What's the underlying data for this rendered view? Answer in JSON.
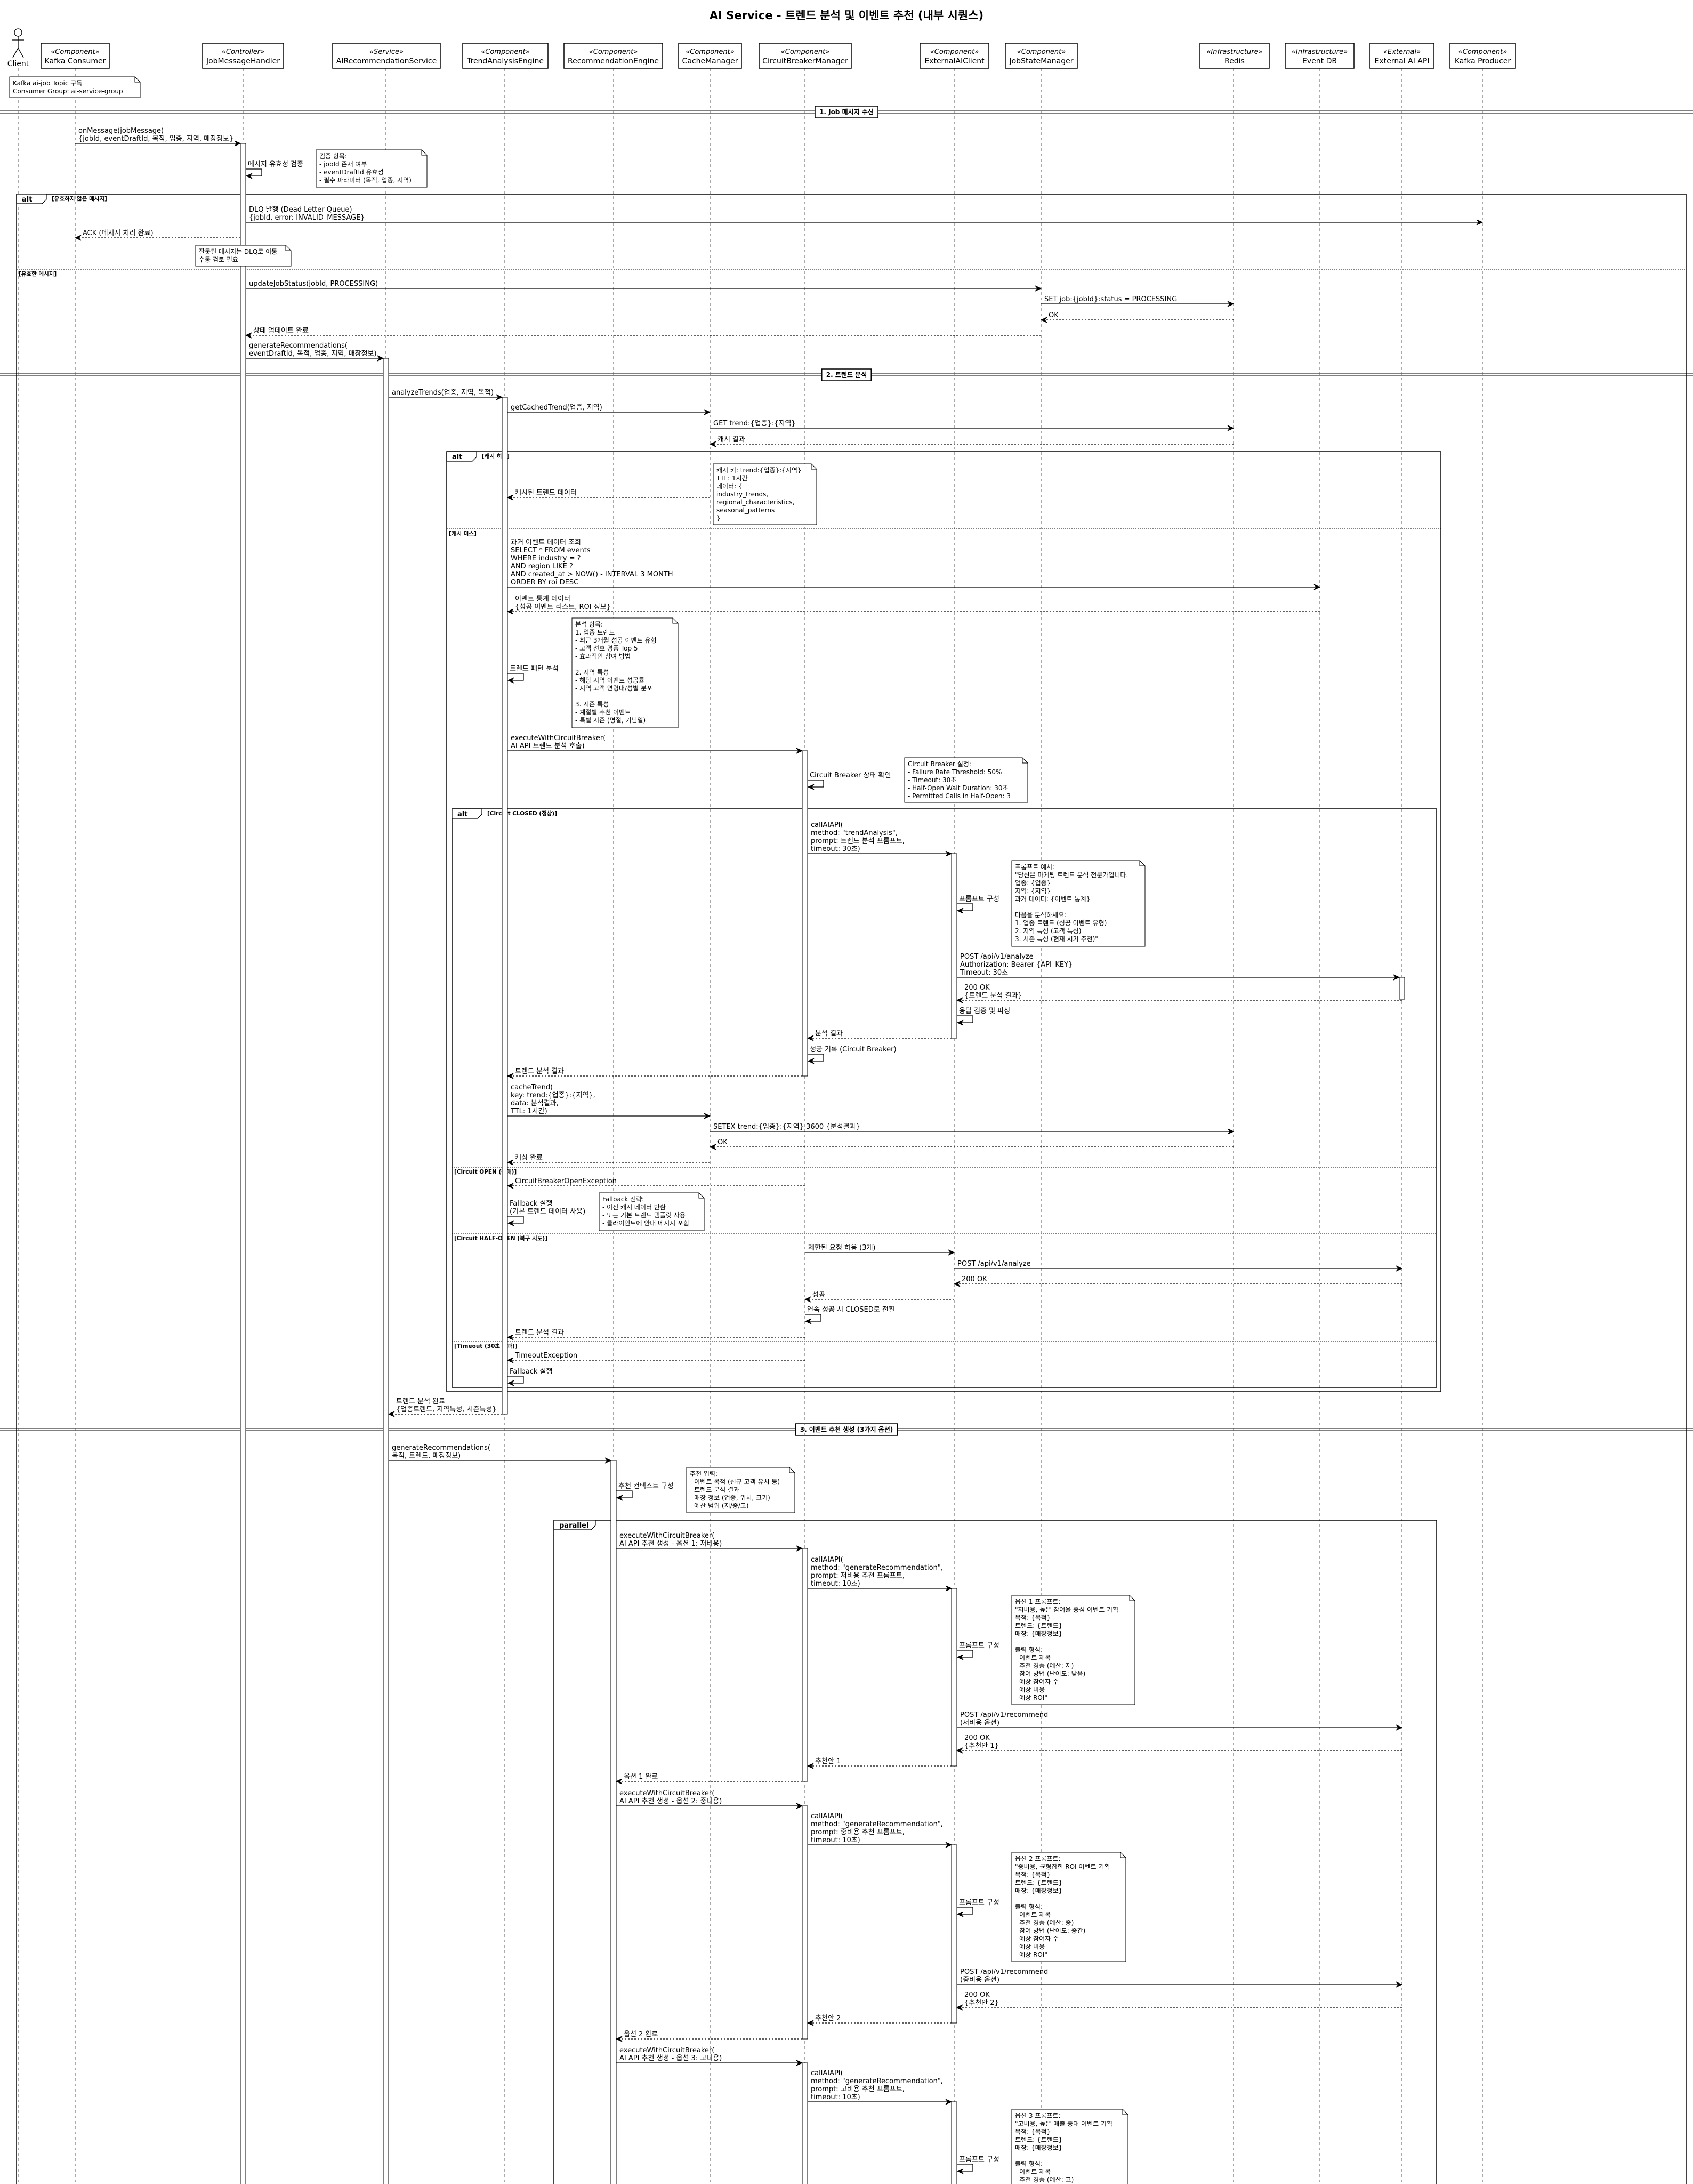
{
  "title": "AI Service - 트렌드 분석 및 이벤트 추천 (내부 시퀀스)",
  "participants": [
    {
      "stereotype": "",
      "name": "Client",
      "kind": "actor"
    },
    {
      "stereotype": "«Component»",
      "name": "Kafka Consumer"
    },
    {
      "stereotype": "«Controller»",
      "name": "JobMessageHandler"
    },
    {
      "stereotype": "«Service»",
      "name": "AIRecommendationService"
    },
    {
      "stereotype": "«Component»",
      "name": "TrendAnalysisEngine"
    },
    {
      "stereotype": "«Component»",
      "name": "RecommendationEngine"
    },
    {
      "stereotype": "«Component»",
      "name": "CacheManager"
    },
    {
      "stereotype": "«Component»",
      "name": "CircuitBreakerManager"
    },
    {
      "stereotype": "«Component»",
      "name": "ExternalAIClient"
    },
    {
      "stereotype": "«Component»",
      "name": "JobStateManager"
    },
    {
      "stereotype": "«Infrastructure»",
      "name": "Redis"
    },
    {
      "stereotype": "«Infrastructure»",
      "name": "Event DB"
    },
    {
      "stereotype": "«External»",
      "name": "External AI API"
    },
    {
      "stereotype": "«Component»",
      "name": "Kafka Producer"
    }
  ],
  "dividers": [
    "1. Job 메시지 수신",
    "2. 트렌드 분석",
    "3. 이벤트 추천 생성 (3가지 옵션)"
  ],
  "fragments": [
    {
      "type": "alt",
      "guards": [
        "[유효하지 않은 메시지]",
        "[유효한 메시지]"
      ]
    },
    {
      "type": "alt",
      "guards": [
        "[캐시 히트]",
        "[캐시 미스]"
      ]
    },
    {
      "type": "alt",
      "guards": [
        "[Circuit CLOSED (정상)]",
        "[Circuit OPEN (장애)]",
        "[Circuit HALF-OPEN (복구 시도)]",
        "[Timeout (30초 초과)]"
      ]
    },
    {
      "type": "parallel",
      "guards": []
    }
  ],
  "messages": [
    {
      "from": "Kafka Consumer",
      "to": "JobMessageHandler",
      "kind": "sync",
      "lines": [
        "onMessage(jobMessage)",
        "{jobId, eventDraftId, 목적, 업종, 지역, 매장정보}"
      ]
    },
    {
      "from": "JobMessageHandler",
      "to": "JobMessageHandler",
      "kind": "self",
      "lines": [
        "메시지 유효성 검증"
      ]
    },
    {
      "from": "JobMessageHandler",
      "to": "Kafka Producer",
      "kind": "sync",
      "lines": [
        "DLQ 발행 (Dead Letter Queue)",
        "{jobId, error: INVALID_MESSAGE}"
      ]
    },
    {
      "from": "JobMessageHandler",
      "to": "Kafka Consumer",
      "kind": "return",
      "lines": [
        "ACK (메시지 처리 완료)"
      ]
    },
    {
      "from": "JobMessageHandler",
      "to": "JobStateManager",
      "kind": "sync",
      "lines": [
        "updateJobStatus(jobId, PROCESSING)"
      ]
    },
    {
      "from": "JobStateManager",
      "to": "Redis",
      "kind": "sync",
      "lines": [
        "SET job:{jobId}:status = PROCESSING"
      ]
    },
    {
      "from": "Redis",
      "to": "JobStateManager",
      "kind": "return",
      "lines": [
        "OK"
      ]
    },
    {
      "from": "JobStateManager",
      "to": "JobMessageHandler",
      "kind": "return",
      "lines": [
        "상태 업데이트 완료"
      ]
    },
    {
      "from": "JobMessageHandler",
      "to": "AIRecommendationService",
      "kind": "sync",
      "lines": [
        "generateRecommendations(",
        "eventDraftId, 목적, 업종, 지역, 매장정보)"
      ]
    },
    {
      "from": "AIRecommendationService",
      "to": "TrendAnalysisEngine",
      "kind": "sync",
      "lines": [
        "analyzeTrends(업종, 지역, 목적)"
      ]
    },
    {
      "from": "TrendAnalysisEngine",
      "to": "CacheManager",
      "kind": "sync",
      "lines": [
        "getCachedTrend(업종, 지역)"
      ]
    },
    {
      "from": "CacheManager",
      "to": "Redis",
      "kind": "sync",
      "lines": [
        "GET trend:{업종}:{지역}"
      ]
    },
    {
      "from": "Redis",
      "to": "CacheManager",
      "kind": "return",
      "lines": [
        "캐시 결과"
      ]
    },
    {
      "from": "CacheManager",
      "to": "TrendAnalysisEngine",
      "kind": "return",
      "lines": [
        "캐시된 트렌드 데이터"
      ]
    },
    {
      "from": "TrendAnalysisEngine",
      "to": "Event DB",
      "kind": "sync",
      "lines": [
        "과거 이벤트 데이터 조회",
        "SELECT * FROM events",
        "WHERE industry = ?",
        "AND region LIKE ?",
        "AND created_at > NOW() - INTERVAL 3 MONTH",
        "ORDER BY roi DESC"
      ]
    },
    {
      "from": "Event DB",
      "to": "TrendAnalysisEngine",
      "kind": "return",
      "lines": [
        "이벤트 통계 데이터",
        "{성공 이벤트 리스트, ROI 정보}"
      ]
    },
    {
      "from": "TrendAnalysisEngine",
      "to": "TrendAnalysisEngine",
      "kind": "self",
      "lines": [
        "트렌드 패턴 분석"
      ]
    },
    {
      "from": "TrendAnalysisEngine",
      "to": "CircuitBreakerManager",
      "kind": "sync",
      "lines": [
        "executeWithCircuitBreaker(",
        "AI API 트렌드 분석 호출)"
      ]
    },
    {
      "from": "CircuitBreakerManager",
      "to": "CircuitBreakerManager",
      "kind": "self",
      "lines": [
        "Circuit Breaker 상태 확인"
      ]
    },
    {
      "from": "CircuitBreakerManager",
      "to": "ExternalAIClient",
      "kind": "sync",
      "lines": [
        "callAIAPI(",
        "method: \"trendAnalysis\",",
        "prompt: 트렌드 분석 프롬프트,",
        "timeout: 30초)"
      ]
    },
    {
      "from": "ExternalAIClient",
      "to": "ExternalAIClient",
      "kind": "self",
      "lines": [
        "프롬프트 구성"
      ]
    },
    {
      "from": "ExternalAIClient",
      "to": "External AI API",
      "kind": "sync",
      "lines": [
        "POST /api/v1/analyze",
        "Authorization: Bearer {API_KEY}",
        "Timeout: 30초"
      ]
    },
    {
      "from": "External AI API",
      "to": "ExternalAIClient",
      "kind": "return",
      "lines": [
        "200 OK",
        "{트렌드 분석 결과}"
      ]
    },
    {
      "from": "ExternalAIClient",
      "to": "ExternalAIClient",
      "kind": "self",
      "lines": [
        "응답 검증 및 파싱"
      ]
    },
    {
      "from": "ExternalAIClient",
      "to": "CircuitBreakerManager",
      "kind": "return",
      "lines": [
        "분석 결과"
      ]
    },
    {
      "from": "CircuitBreakerManager",
      "to": "CircuitBreakerManager",
      "kind": "self",
      "lines": [
        "성공 기록 (Circuit Breaker)"
      ]
    },
    {
      "from": "CircuitBreakerManager",
      "to": "TrendAnalysisEngine",
      "kind": "return",
      "lines": [
        "트렌드 분석 결과"
      ]
    },
    {
      "from": "TrendAnalysisEngine",
      "to": "CacheManager",
      "kind": "sync",
      "lines": [
        "cacheTrend(",
        "key: trend:{업종}:{지역},",
        "data: 분석결과,",
        "TTL: 1시간)"
      ]
    },
    {
      "from": "CacheManager",
      "to": "Redis",
      "kind": "sync",
      "lines": [
        "SETEX trend:{업종}:{지역} 3600 {분석결과}"
      ]
    },
    {
      "from": "Redis",
      "to": "CacheManager",
      "kind": "return",
      "lines": [
        "OK"
      ]
    },
    {
      "from": "CacheManager",
      "to": "TrendAnalysisEngine",
      "kind": "return",
      "lines": [
        "캐싱 완료"
      ]
    },
    {
      "from": "CircuitBreakerManager",
      "to": "TrendAnalysisEngine",
      "kind": "return",
      "lines": [
        "CircuitBreakerOpenException"
      ]
    },
    {
      "from": "TrendAnalysisEngine",
      "to": "TrendAnalysisEngine",
      "kind": "self",
      "lines": [
        "Fallback 실행",
        "(기본 트렌드 데이터 사용)"
      ]
    },
    {
      "from": "CircuitBreakerManager",
      "to": "ExternalAIClient",
      "kind": "sync",
      "lines": [
        "제한된 요청 허용 (3개)"
      ]
    },
    {
      "from": "ExternalAIClient",
      "to": "External AI API",
      "kind": "sync",
      "lines": [
        "POST /api/v1/analyze"
      ]
    },
    {
      "from": "External AI API",
      "to": "ExternalAIClient",
      "kind": "return",
      "lines": [
        "200 OK"
      ]
    },
    {
      "from": "ExternalAIClient",
      "to": "CircuitBreakerManager",
      "kind": "return",
      "lines": [
        "성공"
      ]
    },
    {
      "from": "CircuitBreakerManager",
      "to": "CircuitBreakerManager",
      "kind": "self",
      "lines": [
        "연속 성공 시 CLOSED로 전환"
      ]
    },
    {
      "from": "CircuitBreakerManager",
      "to": "TrendAnalysisEngine",
      "kind": "return",
      "lines": [
        "트렌드 분석 결과"
      ]
    },
    {
      "from": "CircuitBreakerManager",
      "to": "TrendAnalysisEngine",
      "kind": "return",
      "lines": [
        "TimeoutException"
      ]
    },
    {
      "from": "TrendAnalysisEngine",
      "to": "TrendAnalysisEngine",
      "kind": "self",
      "lines": [
        "Fallback 실행"
      ]
    },
    {
      "from": "TrendAnalysisEngine",
      "to": "AIRecommendationService",
      "kind": "return",
      "lines": [
        "트렌드 분석 완료",
        "{업종트렌드, 지역특성, 시즌특성}"
      ]
    },
    {
      "from": "AIRecommendationService",
      "to": "RecommendationEngine",
      "kind": "sync",
      "lines": [
        "generateRecommendations(",
        "목적, 트렌드, 매장정보)"
      ]
    },
    {
      "from": "RecommendationEngine",
      "to": "RecommendationEngine",
      "kind": "self",
      "lines": [
        "추천 컨텍스트 구성"
      ]
    },
    {
      "from": "RecommendationEngine",
      "to": "CircuitBreakerManager",
      "kind": "sync",
      "lines": [
        "executeWithCircuitBreaker(",
        "AI API 추천 생성 - 옵션 1: 저비용)"
      ]
    },
    {
      "from": "CircuitBreakerManager",
      "to": "ExternalAIClient",
      "kind": "sync",
      "lines": [
        "callAIAPI(",
        "method: \"generateRecommendation\",",
        "prompt: 저비용 추천 프롬프트,",
        "timeout: 10초)"
      ]
    },
    {
      "from": "ExternalAIClient",
      "to": "ExternalAIClient",
      "kind": "self",
      "lines": [
        "프롬프트 구성"
      ]
    },
    {
      "from": "ExternalAIClient",
      "to": "External AI API",
      "kind": "sync",
      "lines": [
        "POST /api/v1/recommend",
        "(저비용 옵션)"
      ]
    },
    {
      "from": "External AI API",
      "to": "ExternalAIClient",
      "kind": "return",
      "lines": [
        "200 OK",
        "{추천안 1}"
      ]
    },
    {
      "from": "ExternalAIClient",
      "to": "CircuitBreakerManager",
      "kind": "return",
      "lines": [
        "추천안 1"
      ]
    },
    {
      "from": "CircuitBreakerManager",
      "to": "RecommendationEngine",
      "kind": "return",
      "lines": [
        "옵션 1 완료"
      ]
    },
    {
      "from": "RecommendationEngine",
      "to": "CircuitBreakerManager",
      "kind": "sync",
      "lines": [
        "executeWithCircuitBreaker(",
        "AI API 추천 생성 - 옵션 2: 중비용)"
      ]
    },
    {
      "from": "CircuitBreakerManager",
      "to": "ExternalAIClient",
      "kind": "sync",
      "lines": [
        "callAIAPI(",
        "method: \"generateRecommendation\",",
        "prompt: 중비용 추천 프롬프트,",
        "timeout: 10초)"
      ]
    },
    {
      "from": "ExternalAIClient",
      "to": "ExternalAIClient",
      "kind": "self",
      "lines": [
        "프롬프트 구성"
      ]
    },
    {
      "from": "ExternalAIClient",
      "to": "External AI API",
      "kind": "sync",
      "lines": [
        "POST /api/v1/recommend",
        "(중비용 옵션)"
      ]
    },
    {
      "from": "External AI API",
      "to": "ExternalAIClient",
      "kind": "return",
      "lines": [
        "200 OK",
        "{추천안 2}"
      ]
    },
    {
      "from": "ExternalAIClient",
      "to": "CircuitBreakerManager",
      "kind": "return",
      "lines": [
        "추천안 2"
      ]
    },
    {
      "from": "CircuitBreakerManager",
      "to": "RecommendationEngine",
      "kind": "return",
      "lines": [
        "옵션 2 완료"
      ]
    },
    {
      "from": "RecommendationEngine",
      "to": "CircuitBreakerManager",
      "kind": "sync",
      "lines": [
        "executeWithCircuitBreaker(",
        "AI API 추천 생성 - 옵션 3: 고비용)"
      ]
    },
    {
      "from": "CircuitBreakerManager",
      "to": "ExternalAIClient",
      "kind": "sync",
      "lines": [
        "callAIAPI(",
        "method: \"generateRecommendation\",",
        "prompt: 고비용 추천 프롬프트,",
        "timeout: 10초)"
      ]
    },
    {
      "from": "ExternalAIClient",
      "to": "ExternalAIClient",
      "kind": "self",
      "lines": [
        "프롬프트 구성"
      ]
    }
  ],
  "notes": [
    {
      "lines": [
        "Kafka ai-job Topic 구독",
        "Consumer Group: ai-service-group"
      ]
    },
    {
      "lines": [
        "검증 항목:",
        "- jobId 존재 여부",
        "- eventDraftId 유효성",
        "- 필수 파라미터 (목적, 업종, 지역)"
      ]
    },
    {
      "lines": [
        "잘못된 메시지는 DLQ로 이동",
        "수동 검토 필요"
      ]
    },
    {
      "lines": [
        "캐시 키: trend:{업종}:{지역}",
        "TTL: 1시간",
        "데이터: {",
        "  industry_trends,",
        "  regional_characteristics,",
        "  seasonal_patterns",
        "}"
      ]
    },
    {
      "lines": [
        "분석 항목:",
        "1. 업종 트렌드",
        "   - 최근 3개월 성공 이벤트 유형",
        "   - 고객 선호 경품 Top 5",
        "   - 효과적인 참여 방법",
        "",
        "2. 지역 특성",
        "   - 해당 지역 이벤트 성공률",
        "   - 지역 고객 연령대/성별 분포",
        "",
        "3. 시즌 특성",
        "   - 계절별 추천 이벤트",
        "   - 특별 시즌 (명절, 기념일)"
      ]
    },
    {
      "lines": [
        "Circuit Breaker 설정:",
        "- Failure Rate Threshold: 50%",
        "- Timeout: 30초",
        "- Half-Open Wait Duration: 30초",
        "- Permitted Calls in Half-Open: 3"
      ]
    },
    {
      "lines": [
        "프롬프트 예시:",
        "\"당신은 마케팅 트렌드 분석 전문가입니다.",
        "업종: {업종}",
        "지역: {지역}",
        "과거 데이터: {이벤트 통계}",
        "",
        "다음을 분석하세요:",
        "1. 업종 트렌드 (성공 이벤트 유형)",
        "2. 지역 특성 (고객 특성)",
        "3. 시즌 특성 (현재 시기 추천)\""
      ]
    },
    {
      "lines": [
        "Fallback 전략:",
        "- 이전 캐시 데이터 반환",
        "- 또는 기본 트렌드 템플릿 사용",
        "- 클라이언트에 안내 메시지 포함"
      ]
    },
    {
      "lines": [
        "추천 입력:",
        "- 이벤트 목적 (신규 고객 유치 등)",
        "- 트렌드 분석 결과",
        "- 매장 정보 (업종, 위치, 크기)",
        "- 예산 범위 (저/중/고)"
      ]
    },
    {
      "lines": [
        "옵션 1 프롬프트:",
        "\"저비용, 높은 참여율 중심 이벤트 기획",
        "목적: {목적}",
        "트렌드: {트렌드}",
        "매장: {매장정보}",
        "",
        "출력 형식:",
        "- 이벤트 제목",
        "- 추천 경품 (예산: 저)",
        "- 참여 방법 (난이도: 낮음)",
        "- 예상 참여자 수",
        "- 예상 비용",
        "- 예상 ROI\""
      ]
    },
    {
      "lines": [
        "옵션 2 프롬프트:",
        "\"중비용, 균형잡힌 ROI 이벤트 기획",
        "목적: {목적}",
        "트렌드: {트렌드}",
        "매장: {매장정보}",
        "",
        "출력 형식:",
        "- 이벤트 제목",
        "- 추천 경품 (예산: 중)",
        "- 참여 방법 (난이도: 중간)",
        "- 예상 참여자 수",
        "- 예상 비용",
        "- 예상 ROI\""
      ]
    },
    {
      "lines": [
        "옵션 3 프롬프트:",
        "\"고비용, 높은 매출 증대 이벤트 기획",
        "목적: {목적}",
        "트렌드: {트렌드}",
        "매장: {매장정보}",
        "",
        "출력 형식:",
        "- 이벤트 제목",
        "- 추천 경품 (예산: 고)"
      ]
    }
  ]
}
